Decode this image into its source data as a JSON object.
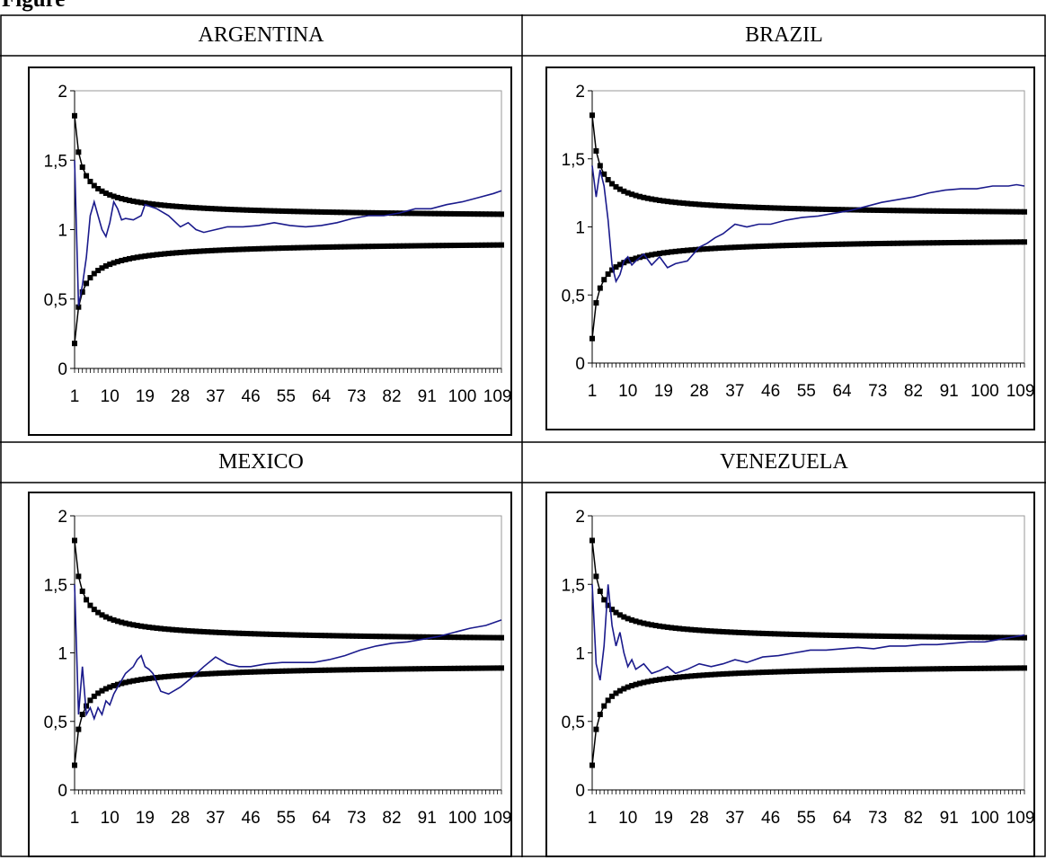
{
  "caption": "Figure",
  "panels": [
    {
      "title": "ARGENTINA"
    },
    {
      "title": "BRAZIL"
    },
    {
      "title": "MEXICO"
    },
    {
      "title": "VENEZUELA"
    }
  ],
  "colors": {
    "band": "#000000",
    "series": "#1a1a8c",
    "plot_border": "#999999"
  },
  "chart_data": [
    {
      "type": "line",
      "title": "ARGENTINA",
      "xlim": [
        1,
        110
      ],
      "ylim": [
        0,
        2
      ],
      "yticks": [
        "0",
        "0,5",
        "1",
        "1,5",
        "2"
      ],
      "xticks": [
        "1",
        "10",
        "19",
        "28",
        "37",
        "46",
        "55",
        "64",
        "73",
        "82",
        "91",
        "100",
        "109"
      ],
      "grid": false,
      "legend": "none",
      "band": {
        "upper_start": 1.82,
        "lower_start": 0.18,
        "end_upper": 1.07,
        "end_lower": 0.93
      },
      "series": [
        {
          "x": [
            1,
            2,
            3,
            4,
            5,
            6,
            7,
            8,
            9,
            10,
            11,
            12,
            13,
            14,
            16,
            18,
            19,
            22,
            25,
            28,
            30,
            32,
            34,
            37,
            40,
            44,
            48,
            52,
            56,
            60,
            64,
            68,
            72,
            76,
            80,
            84,
            88,
            92,
            96,
            100,
            104,
            108,
            110
          ],
          "y": [
            1.5,
            0.45,
            0.6,
            0.8,
            1.1,
            1.2,
            1.1,
            1.0,
            0.95,
            1.05,
            1.2,
            1.15,
            1.07,
            1.08,
            1.07,
            1.1,
            1.18,
            1.15,
            1.1,
            1.02,
            1.05,
            1.0,
            0.98,
            1.0,
            1.02,
            1.02,
            1.03,
            1.05,
            1.03,
            1.02,
            1.03,
            1.05,
            1.08,
            1.1,
            1.1,
            1.12,
            1.15,
            1.15,
            1.18,
            1.2,
            1.23,
            1.26,
            1.28
          ]
        }
      ]
    },
    {
      "type": "line",
      "title": "BRAZIL",
      "xlim": [
        1,
        110
      ],
      "ylim": [
        0,
        2
      ],
      "yticks": [
        "0",
        "0,5",
        "1",
        "1,5",
        "2"
      ],
      "xticks": [
        "1",
        "10",
        "19",
        "28",
        "37",
        "46",
        "55",
        "64",
        "73",
        "82",
        "91",
        "100",
        "109"
      ],
      "grid": false,
      "legend": "none",
      "band": {
        "upper_start": 1.82,
        "lower_start": 0.18,
        "end_upper": 1.07,
        "end_lower": 0.93
      },
      "series": [
        {
          "x": [
            1,
            2,
            3,
            4,
            5,
            6,
            7,
            8,
            9,
            10,
            11,
            12,
            14,
            16,
            18,
            20,
            22,
            25,
            28,
            30,
            32,
            34,
            37,
            40,
            43,
            46,
            50,
            54,
            58,
            62,
            66,
            70,
            74,
            78,
            82,
            86,
            90,
            94,
            98,
            102,
            106,
            108,
            110
          ],
          "y": [
            1.45,
            1.22,
            1.42,
            1.3,
            1.05,
            0.72,
            0.6,
            0.65,
            0.75,
            0.78,
            0.72,
            0.75,
            0.8,
            0.72,
            0.78,
            0.7,
            0.73,
            0.75,
            0.85,
            0.88,
            0.92,
            0.95,
            1.02,
            1.0,
            1.02,
            1.02,
            1.05,
            1.07,
            1.08,
            1.1,
            1.12,
            1.15,
            1.18,
            1.2,
            1.22,
            1.25,
            1.27,
            1.28,
            1.28,
            1.3,
            1.3,
            1.31,
            1.3
          ]
        }
      ]
    },
    {
      "type": "line",
      "title": "MEXICO",
      "xlim": [
        1,
        110
      ],
      "ylim": [
        0,
        2
      ],
      "yticks": [
        "0",
        "0,5",
        "1",
        "1,5",
        "2"
      ],
      "xticks": [
        "1",
        "10",
        "19",
        "28",
        "37",
        "46",
        "55",
        "64",
        "73",
        "82",
        "91",
        "100",
        "109"
      ],
      "grid": false,
      "legend": "none",
      "band": {
        "upper_start": 1.82,
        "lower_start": 0.18,
        "end_upper": 1.07,
        "end_lower": 0.93
      },
      "series": [
        {
          "x": [
            1,
            2,
            3,
            4,
            5,
            6,
            7,
            8,
            9,
            10,
            11,
            12,
            14,
            16,
            17,
            18,
            19,
            20,
            21,
            23,
            25,
            28,
            31,
            34,
            37,
            40,
            43,
            46,
            50,
            54,
            58,
            62,
            66,
            70,
            74,
            78,
            82,
            86,
            90,
            94,
            98,
            102,
            106,
            110
          ],
          "y": [
            1.5,
            0.55,
            0.9,
            0.55,
            0.6,
            0.52,
            0.6,
            0.55,
            0.65,
            0.62,
            0.7,
            0.75,
            0.85,
            0.9,
            0.95,
            0.98,
            0.9,
            0.88,
            0.85,
            0.72,
            0.7,
            0.75,
            0.82,
            0.9,
            0.97,
            0.92,
            0.9,
            0.9,
            0.92,
            0.93,
            0.93,
            0.93,
            0.95,
            0.98,
            1.02,
            1.05,
            1.07,
            1.08,
            1.1,
            1.12,
            1.15,
            1.18,
            1.2,
            1.24
          ]
        }
      ]
    },
    {
      "type": "line",
      "title": "VENEZUELA",
      "xlim": [
        1,
        110
      ],
      "ylim": [
        0,
        2
      ],
      "yticks": [
        "0",
        "0,5",
        "1",
        "1,5",
        "2"
      ],
      "xticks": [
        "1",
        "10",
        "19",
        "28",
        "37",
        "46",
        "55",
        "64",
        "73",
        "82",
        "91",
        "100",
        "109"
      ],
      "grid": false,
      "legend": "none",
      "band": {
        "upper_start": 1.82,
        "lower_start": 0.18,
        "end_upper": 1.07,
        "end_lower": 0.93
      },
      "series": [
        {
          "x": [
            1,
            2,
            3,
            4,
            5,
            6,
            7,
            8,
            9,
            10,
            11,
            12,
            14,
            16,
            18,
            20,
            22,
            25,
            28,
            31,
            34,
            37,
            40,
            44,
            48,
            52,
            56,
            60,
            64,
            68,
            72,
            76,
            80,
            84,
            88,
            92,
            96,
            100,
            104,
            108,
            110
          ],
          "y": [
            1.5,
            0.92,
            0.8,
            1.05,
            1.5,
            1.2,
            1.05,
            1.15,
            1.0,
            0.9,
            0.95,
            0.88,
            0.92,
            0.85,
            0.87,
            0.9,
            0.85,
            0.88,
            0.92,
            0.9,
            0.92,
            0.95,
            0.93,
            0.97,
            0.98,
            1.0,
            1.02,
            1.02,
            1.03,
            1.04,
            1.03,
            1.05,
            1.05,
            1.06,
            1.06,
            1.07,
            1.08,
            1.08,
            1.1,
            1.12,
            1.13
          ]
        }
      ]
    }
  ]
}
